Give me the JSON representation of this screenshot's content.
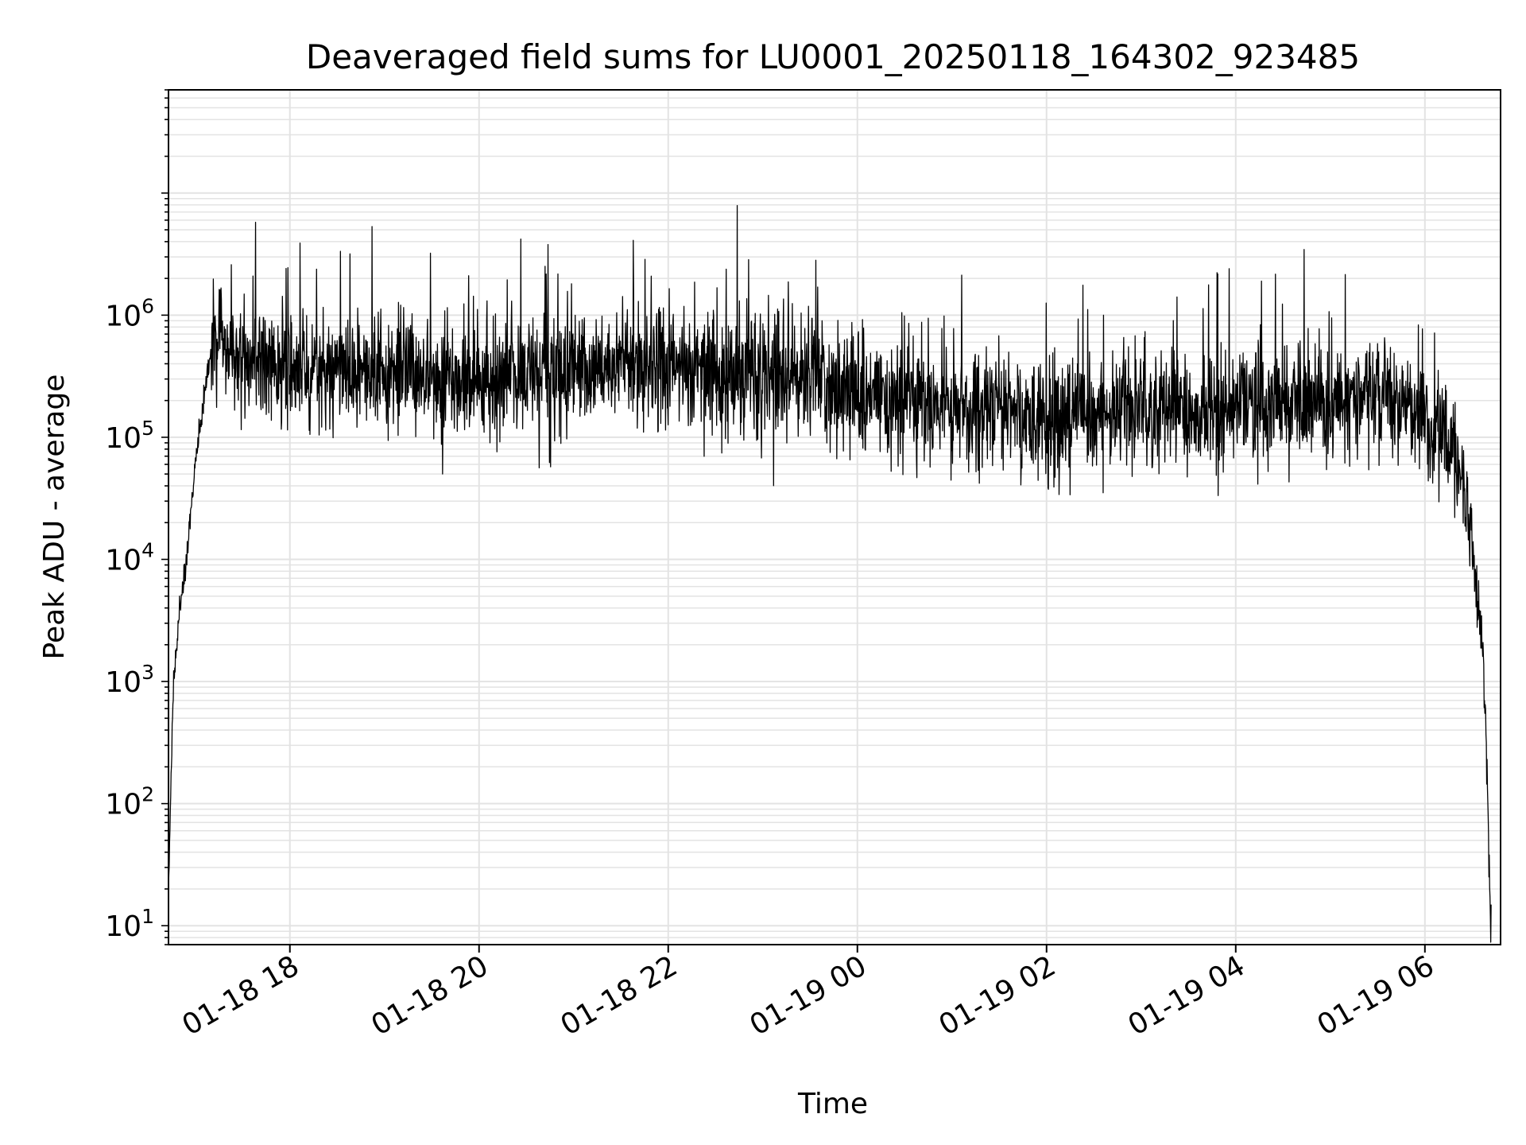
{
  "chart_data": {
    "type": "line",
    "title": "Deaveraged field sums for LU0001_20250118_164302_923485",
    "xlabel": "Time",
    "ylabel": "Peak ADU - average",
    "yscale": "log",
    "ylim": [
      7,
      70000000
    ],
    "xlim": [
      "2025-01-18 16:43",
      "2025-01-19 06:48"
    ],
    "grid": true,
    "line_color": "#000000",
    "x_ticks": [
      {
        "label": "01-18 18",
        "time": "2025-01-18 18:00"
      },
      {
        "label": "01-18 20",
        "time": "2025-01-18 20:00"
      },
      {
        "label": "01-18 22",
        "time": "2025-01-18 22:00"
      },
      {
        "label": "01-19 00",
        "time": "2025-01-19 00:00"
      },
      {
        "label": "01-19 02",
        "time": "2025-01-19 02:00"
      },
      {
        "label": "01-19 04",
        "time": "2025-01-19 04:00"
      },
      {
        "label": "01-19 06",
        "time": "2025-01-19 06:00"
      }
    ],
    "y_ticks": [
      {
        "base": "10",
        "exp": "1",
        "value": 10
      },
      {
        "base": "10",
        "exp": "2",
        "value": 100
      },
      {
        "base": "10",
        "exp": "3",
        "value": 1000
      },
      {
        "base": "10",
        "exp": "4",
        "value": 10000
      },
      {
        "base": "10",
        "exp": "5",
        "value": 100000
      },
      {
        "base": "10",
        "exp": "6",
        "value": 1000000
      }
    ],
    "series": [
      {
        "x": [
          "2025-01-18 16:43",
          "2025-01-18 16:46",
          "2025-01-18 16:50",
          "2025-01-18 16:55",
          "2025-01-18 17:00",
          "2025-01-18 17:05",
          "2025-01-18 17:10",
          "2025-01-18 17:15",
          "2025-01-18 17:20",
          "2025-01-18 17:30",
          "2025-01-18 17:45",
          "2025-01-18 18:00",
          "2025-01-18 18:30",
          "2025-01-18 19:00",
          "2025-01-18 19:30",
          "2025-01-18 20:00",
          "2025-01-18 20:30",
          "2025-01-18 21:00",
          "2025-01-18 21:30",
          "2025-01-18 22:00",
          "2025-01-18 22:30",
          "2025-01-18 23:00",
          "2025-01-18 23:30",
          "2025-01-19 00:00",
          "2025-01-19 00:30",
          "2025-01-19 01:00",
          "2025-01-19 01:30",
          "2025-01-19 02:00",
          "2025-01-19 02:30",
          "2025-01-19 03:00",
          "2025-01-19 03:30",
          "2025-01-19 04:00",
          "2025-01-19 04:30",
          "2025-01-19 05:00",
          "2025-01-19 05:30",
          "2025-01-19 06:00",
          "2025-01-19 06:10",
          "2025-01-19 06:20",
          "2025-01-19 06:25",
          "2025-01-19 06:30",
          "2025-01-19 06:35",
          "2025-01-19 06:38",
          "2025-01-19 06:40",
          "2025-01-19 06:42"
        ],
        "y": [
          20,
          800,
          4000,
          12000,
          60000,
          200000,
          500000,
          600000,
          550000,
          450000,
          400000,
          380000,
          350000,
          360000,
          320000,
          300000,
          330000,
          350000,
          340000,
          360000,
          330000,
          320000,
          300000,
          220000,
          180000,
          170000,
          160000,
          140000,
          150000,
          170000,
          160000,
          180000,
          190000,
          200000,
          220000,
          150000,
          110000,
          70000,
          40000,
          12000,
          3000,
          1000,
          100,
          8
        ]
      }
    ]
  }
}
